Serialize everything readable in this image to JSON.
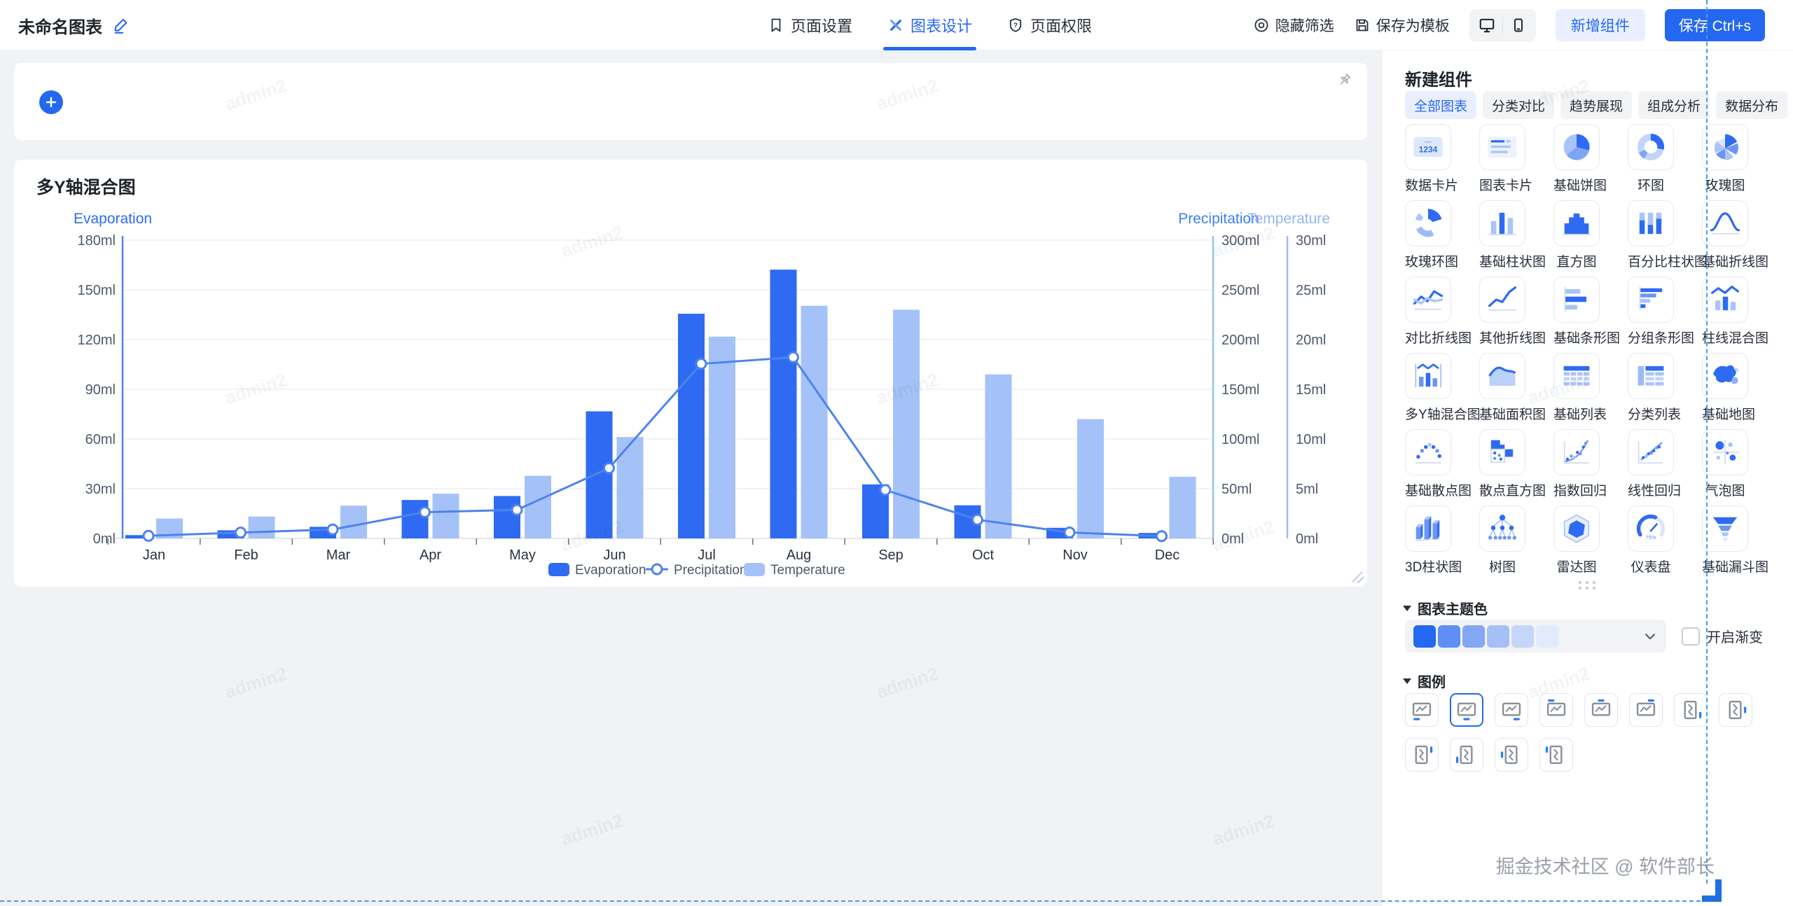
{
  "topbar": {
    "title": "未命名图表",
    "tabs": [
      {
        "label": "页面设置",
        "icon": "bookmark-icon",
        "active": false
      },
      {
        "label": "图表设计",
        "icon": "design-icon",
        "active": true
      },
      {
        "label": "页面权限",
        "icon": "shield-icon",
        "active": false
      }
    ],
    "actions": {
      "hide_filter": "隐藏筛选",
      "save_template": "保存为模板",
      "add_component": "新增组件",
      "save": "保存 Ctrl+s"
    }
  },
  "canvas": {
    "watermark": "admin2",
    "chart_card_title": "多Y轴混合图"
  },
  "chart_data": {
    "type": "bar+line multi-y-axis",
    "title": "多Y轴混合图",
    "categories": [
      "Jan",
      "Feb",
      "Mar",
      "Apr",
      "May",
      "Jun",
      "Jul",
      "Aug",
      "Sep",
      "Oct",
      "Nov",
      "Dec"
    ],
    "series": [
      {
        "name": "Evaporation",
        "type": "bar",
        "axis": "left",
        "color": "#2e6bf2",
        "values": [
          2.0,
          4.9,
          7.0,
          23.2,
          25.6,
          76.7,
          135.6,
          162.2,
          32.6,
          20.0,
          6.4,
          3.3
        ]
      },
      {
        "name": "Precipitation",
        "type": "line",
        "axis": "right1",
        "color": "#4e83ec",
        "values": [
          2.6,
          5.9,
          9.0,
          26.4,
          28.7,
          70.7,
          175.6,
          182.2,
          48.7,
          18.8,
          6.0,
          2.3
        ]
      },
      {
        "name": "Temperature",
        "type": "bar",
        "axis": "right2",
        "color": "#a4c2f8",
        "values": [
          2.0,
          2.2,
          3.3,
          4.5,
          6.3,
          10.2,
          20.3,
          23.4,
          23.0,
          16.5,
          12.0,
          6.2
        ]
      }
    ],
    "axes": {
      "left": {
        "name": "Evaporation",
        "min": 0,
        "max": 180,
        "step": 30,
        "unit": "ml",
        "color": "#2e6bf2"
      },
      "right1": {
        "name": "Precipitation",
        "min": 0,
        "max": 300,
        "step": 50,
        "unit": "ml",
        "color": "#3f7ef2"
      },
      "right2": {
        "name": "Temperature",
        "min": 0,
        "max": 30,
        "step": 5,
        "unit": "ml",
        "color": "#93b6f4"
      }
    },
    "grid": true,
    "legend_position": "bottom"
  },
  "panel": {
    "header": "新建组件",
    "tabs": [
      "全部图表",
      "分类对比",
      "趋势展现",
      "组成分析",
      "数据分布"
    ],
    "active_tab": "全部图表",
    "components": [
      {
        "label": "数据卡片",
        "icon": "data-card"
      },
      {
        "label": "图表卡片",
        "icon": "chart-card"
      },
      {
        "label": "基础饼图",
        "icon": "pie"
      },
      {
        "label": "环图",
        "icon": "donut"
      },
      {
        "label": "玫瑰图",
        "icon": "rose"
      },
      {
        "label": "玫瑰环图",
        "icon": "rose-donut"
      },
      {
        "label": "基础柱状图",
        "icon": "bar"
      },
      {
        "label": "直方图",
        "icon": "histogram"
      },
      {
        "label": "百分比柱状图",
        "icon": "percent-bar"
      },
      {
        "label": "基础折线图",
        "icon": "line"
      },
      {
        "label": "对比折线图",
        "icon": "compare-line"
      },
      {
        "label": "其他折线图",
        "icon": "other-line"
      },
      {
        "label": "基础条形图",
        "icon": "bar-h"
      },
      {
        "label": "分组条形图",
        "icon": "bar-h-group"
      },
      {
        "label": "柱线混合图",
        "icon": "bar-line-mix"
      },
      {
        "label": "多Y轴混合图",
        "icon": "multi-y-mix"
      },
      {
        "label": "基础面积图",
        "icon": "area"
      },
      {
        "label": "基础列表",
        "icon": "table"
      },
      {
        "label": "分类列表",
        "icon": "table-category"
      },
      {
        "label": "基础地图",
        "icon": "map"
      },
      {
        "label": "基础散点图",
        "icon": "scatter"
      },
      {
        "label": "散点直方图",
        "icon": "scatter-histogram"
      },
      {
        "label": "指数回归",
        "icon": "exp-regression"
      },
      {
        "label": "线性回归",
        "icon": "linear-regression"
      },
      {
        "label": "气泡图",
        "icon": "bubble"
      },
      {
        "label": "3D柱状图",
        "icon": "bar-3d"
      },
      {
        "label": "树图",
        "icon": "tree"
      },
      {
        "label": "雷达图",
        "icon": "radar"
      },
      {
        "label": "仪表盘",
        "icon": "gauge"
      },
      {
        "label": "基础漏斗图",
        "icon": "funnel"
      }
    ],
    "theme_section": {
      "title": "图表主题色",
      "colors": [
        "#2468f2",
        "#5f8ef5",
        "#84a7f3",
        "#a6c0f7",
        "#c5d6fa",
        "#e2ebfd"
      ],
      "gradient_label": "开启渐变",
      "gradient_checked": false
    },
    "legend_section": {
      "title": "图例",
      "selected_index": 1,
      "options": [
        {
          "name": "legend-bottom-left",
          "orient": "h",
          "side": "bottom",
          "align": "start"
        },
        {
          "name": "legend-bottom-center",
          "orient": "h",
          "side": "bottom",
          "align": "center"
        },
        {
          "name": "legend-bottom-right",
          "orient": "h",
          "side": "bottom",
          "align": "end"
        },
        {
          "name": "legend-top-left",
          "orient": "h",
          "side": "top",
          "align": "start"
        },
        {
          "name": "legend-top-center",
          "orient": "h",
          "side": "top",
          "align": "center"
        },
        {
          "name": "legend-top-right",
          "orient": "h",
          "side": "top",
          "align": "end"
        },
        {
          "name": "legend-right-bottom",
          "orient": "v",
          "side": "right",
          "align": "end"
        },
        {
          "name": "legend-right-center",
          "orient": "v",
          "side": "right",
          "align": "center"
        },
        {
          "name": "legend-right-top",
          "orient": "v",
          "side": "right",
          "align": "start"
        },
        {
          "name": "legend-left-bottom",
          "orient": "v",
          "side": "left",
          "align": "end"
        },
        {
          "name": "legend-left-center",
          "orient": "v",
          "side": "left",
          "align": "center"
        },
        {
          "name": "legend-left-top",
          "orient": "v",
          "side": "left",
          "align": "start"
        }
      ]
    }
  },
  "footer_watermark": "掘金技术社区 @ 软件部长"
}
